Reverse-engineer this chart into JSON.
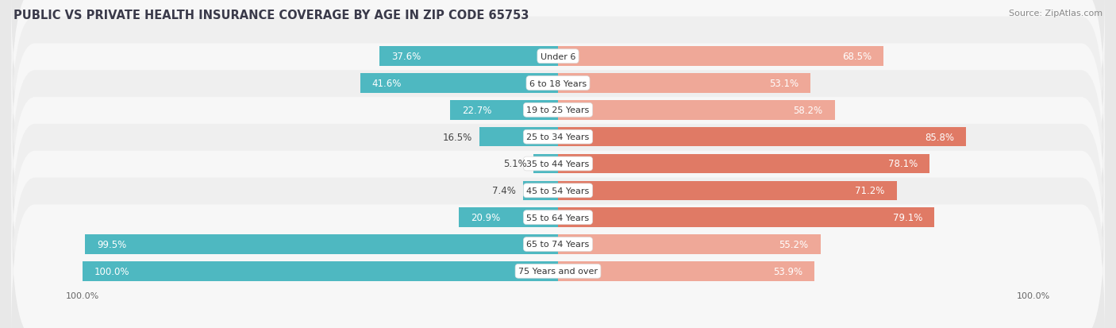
{
  "title": "PUBLIC VS PRIVATE HEALTH INSURANCE COVERAGE BY AGE IN ZIP CODE 65753",
  "source": "Source: ZipAtlas.com",
  "categories": [
    "Under 6",
    "6 to 18 Years",
    "19 to 25 Years",
    "25 to 34 Years",
    "35 to 44 Years",
    "45 to 54 Years",
    "55 to 64 Years",
    "65 to 74 Years",
    "75 Years and over"
  ],
  "public_values": [
    37.6,
    41.6,
    22.7,
    16.5,
    5.1,
    7.4,
    20.9,
    99.5,
    100.0
  ],
  "private_values": [
    68.5,
    53.1,
    58.2,
    85.8,
    78.1,
    71.2,
    79.1,
    55.2,
    53.9
  ],
  "public_color": "#4EB8C1",
  "private_color_dark": "#E07A65",
  "private_color_light": "#EFA898",
  "row_bg_odd": "#f7f7f7",
  "row_bg_even": "#efefef",
  "background_color": "#e8e8e8",
  "label_white": "#ffffff",
  "label_dark": "#555555",
  "axis_max": 100.0,
  "title_fontsize": 10.5,
  "source_fontsize": 8,
  "label_fontsize": 8.5,
  "category_fontsize": 8,
  "legend_fontsize": 9,
  "axis_label_fontsize": 8
}
